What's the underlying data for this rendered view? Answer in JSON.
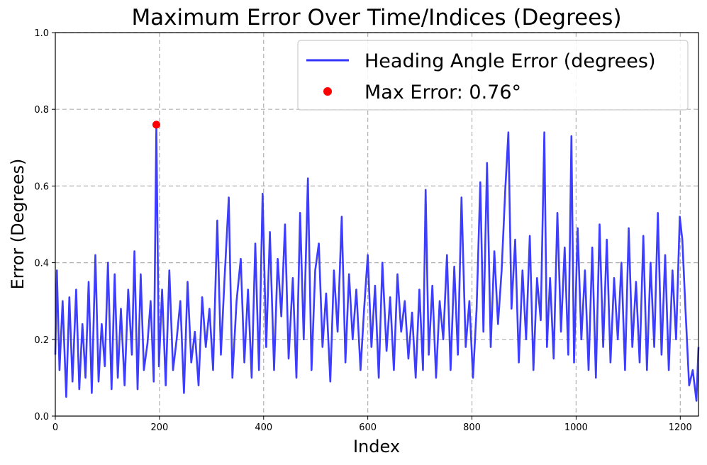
{
  "chart_data": {
    "type": "line",
    "title": "Maximum Error Over Time/Indices (Degrees)",
    "xlabel": "Index",
    "ylabel": "Error (Degrees)",
    "xlim": [
      0,
      1235
    ],
    "ylim": [
      0,
      1.0
    ],
    "xticks": [
      0,
      200,
      400,
      600,
      800,
      1000,
      1200
    ],
    "yticks": [
      0.0,
      0.2,
      0.4,
      0.6,
      0.8,
      1.0
    ],
    "grid": true,
    "legend_position": "upper-right",
    "series": [
      {
        "name": "Heading Angle Error (degrees)",
        "color": "#3333ff",
        "x": [
          0,
          3,
          8,
          14,
          21,
          27,
          33,
          40,
          46,
          52,
          58,
          64,
          70,
          77,
          83,
          89,
          95,
          101,
          108,
          114,
          120,
          126,
          133,
          140,
          147,
          152,
          158,
          164,
          170,
          177,
          183,
          189,
          194,
          199,
          205,
          212,
          219,
          226,
          233,
          240,
          247,
          254,
          261,
          268,
          275,
          282,
          289,
          296,
          303,
          311,
          318,
          325,
          333,
          340,
          348,
          356,
          363,
          370,
          377,
          384,
          391,
          398,
          405,
          412,
          420,
          427,
          434,
          441,
          448,
          456,
          463,
          470,
          477,
          485,
          492,
          499,
          506,
          513,
          520,
          528,
          535,
          542,
          550,
          557,
          564,
          571,
          578,
          586,
          593,
          600,
          607,
          614,
          621,
          628,
          636,
          643,
          650,
          657,
          664,
          671,
          678,
          685,
          692,
          699,
          706,
          711,
          717,
          724,
          731,
          738,
          745,
          752,
          759,
          766,
          773,
          780,
          788,
          795,
          802,
          809,
          816,
          822,
          829,
          836,
          843,
          850,
          857,
          864,
          870,
          876,
          883,
          890,
          897,
          904,
          911,
          918,
          925,
          932,
          939,
          944,
          950,
          957,
          964,
          971,
          978,
          985,
          991,
          996,
          1003,
          1010,
          1017,
          1024,
          1031,
          1038,
          1045,
          1052,
          1059,
          1066,
          1073,
          1080,
          1087,
          1094,
          1101,
          1108,
          1115,
          1122,
          1129,
          1136,
          1143,
          1150,
          1157,
          1164,
          1171,
          1178,
          1185,
          1192,
          1199,
          1204,
          1210,
          1217,
          1224,
          1231,
          1235
        ],
        "values": [
          0.16,
          0.38,
          0.12,
          0.3,
          0.05,
          0.31,
          0.09,
          0.33,
          0.07,
          0.24,
          0.1,
          0.35,
          0.06,
          0.42,
          0.09,
          0.24,
          0.13,
          0.4,
          0.07,
          0.37,
          0.1,
          0.28,
          0.08,
          0.33,
          0.16,
          0.43,
          0.07,
          0.37,
          0.12,
          0.19,
          0.3,
          0.09,
          0.76,
          0.13,
          0.33,
          0.08,
          0.38,
          0.12,
          0.2,
          0.3,
          0.06,
          0.35,
          0.14,
          0.22,
          0.08,
          0.31,
          0.18,
          0.28,
          0.12,
          0.51,
          0.16,
          0.36,
          0.57,
          0.1,
          0.3,
          0.41,
          0.14,
          0.33,
          0.1,
          0.45,
          0.12,
          0.58,
          0.18,
          0.48,
          0.12,
          0.41,
          0.26,
          0.5,
          0.15,
          0.36,
          0.1,
          0.53,
          0.2,
          0.62,
          0.12,
          0.38,
          0.45,
          0.18,
          0.32,
          0.09,
          0.38,
          0.22,
          0.52,
          0.14,
          0.37,
          0.2,
          0.33,
          0.12,
          0.28,
          0.42,
          0.18,
          0.34,
          0.1,
          0.4,
          0.17,
          0.31,
          0.12,
          0.37,
          0.22,
          0.3,
          0.15,
          0.27,
          0.1,
          0.33,
          0.12,
          0.59,
          0.16,
          0.34,
          0.1,
          0.3,
          0.2,
          0.42,
          0.12,
          0.39,
          0.16,
          0.57,
          0.18,
          0.3,
          0.1,
          0.28,
          0.61,
          0.22,
          0.66,
          0.18,
          0.43,
          0.24,
          0.38,
          0.59,
          0.74,
          0.28,
          0.46,
          0.14,
          0.38,
          0.2,
          0.47,
          0.12,
          0.36,
          0.25,
          0.74,
          0.18,
          0.36,
          0.15,
          0.53,
          0.22,
          0.44,
          0.16,
          0.73,
          0.14,
          0.49,
          0.2,
          0.38,
          0.12,
          0.44,
          0.1,
          0.5,
          0.18,
          0.46,
          0.14,
          0.36,
          0.2,
          0.4,
          0.12,
          0.49,
          0.18,
          0.35,
          0.14,
          0.47,
          0.12,
          0.4,
          0.18,
          0.53,
          0.16,
          0.42,
          0.12,
          0.38,
          0.2,
          0.52,
          0.46,
          0.28,
          0.08,
          0.12,
          0.04,
          0.18
        ]
      }
    ],
    "marker": {
      "name": "Max Error: 0.76°",
      "x": 194,
      "y": 0.76,
      "color": "#ff0000"
    }
  }
}
